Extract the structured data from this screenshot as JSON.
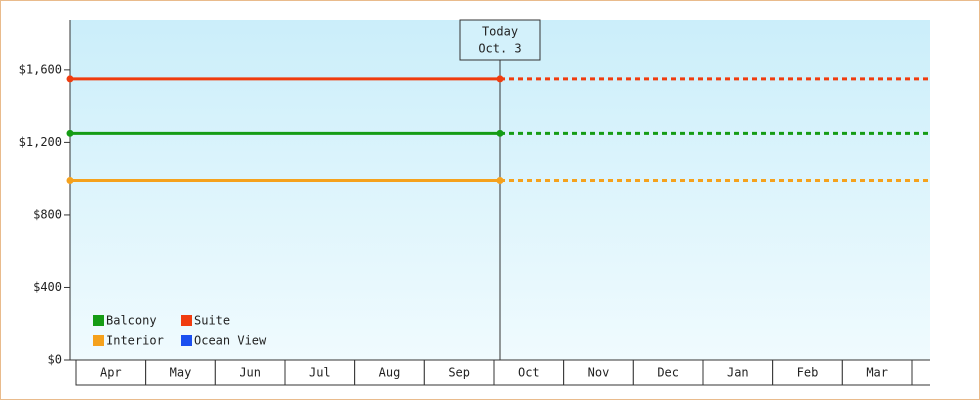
{
  "chart_data": {
    "type": "line",
    "categories": [
      "Apr",
      "May",
      "Jun",
      "Jul",
      "Aug",
      "Sep",
      "Oct",
      "Nov",
      "Dec",
      "Jan",
      "Feb",
      "Mar"
    ],
    "series": [
      {
        "name": "Balcony",
        "color": "#159c15",
        "value": 1250
      },
      {
        "name": "Suite",
        "color": "#f03c0f",
        "value": 1550
      },
      {
        "name": "Interior",
        "color": "#f5a11c",
        "value": 990
      },
      {
        "name": "Ocean View",
        "color": "#1a4ff0",
        "value": null
      }
    ],
    "today": [
      "Today",
      "Oct. 3"
    ],
    "ylim": [
      0,
      1875
    ],
    "yticks": [
      {
        "value": 0,
        "label": "$0"
      },
      {
        "value": 400,
        "label": "$400"
      },
      {
        "value": 800,
        "label": "$800"
      },
      {
        "value": 1200,
        "label": "$1,200"
      },
      {
        "value": 1600,
        "label": "$1,600"
      }
    ]
  }
}
